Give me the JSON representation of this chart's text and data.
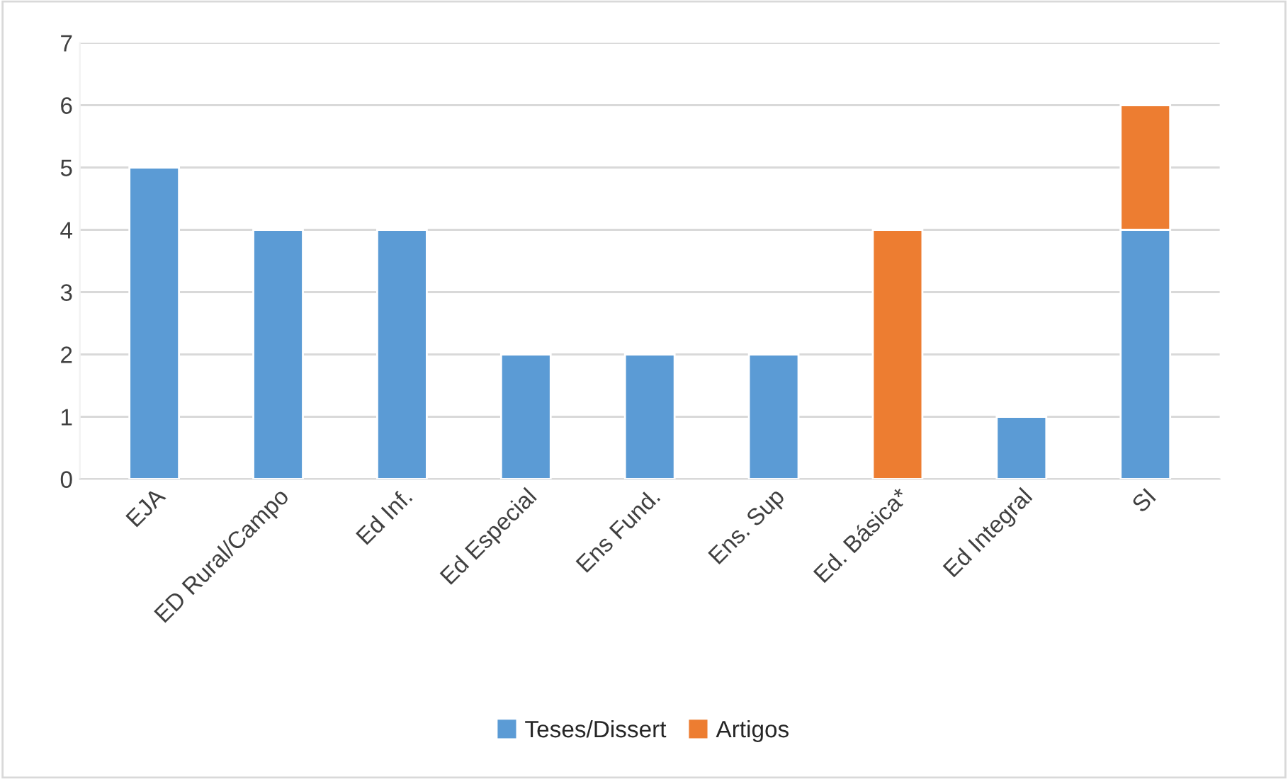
{
  "chart_data": {
    "type": "bar",
    "stacked": true,
    "categories": [
      "EJA",
      "ED Rural/Campo",
      "Ed Inf.",
      "Ed Especial",
      "Ens Fund.",
      "Ens. Sup",
      "Ed. Básica*",
      "Ed Integral",
      "SI"
    ],
    "series": [
      {
        "name": "Teses/Dissert",
        "color": "#5b9bd5",
        "values": [
          5,
          4,
          4,
          2,
          2,
          2,
          null,
          1,
          4
        ]
      },
      {
        "name": "Artigos",
        "color": "#ed7d31",
        "values": [
          null,
          null,
          null,
          null,
          null,
          null,
          4,
          null,
          2
        ]
      }
    ],
    "ylim": [
      0,
      7
    ],
    "yticks": [
      0,
      1,
      2,
      3,
      4,
      5,
      6,
      7
    ],
    "grid": "y",
    "legend": "bottom"
  }
}
